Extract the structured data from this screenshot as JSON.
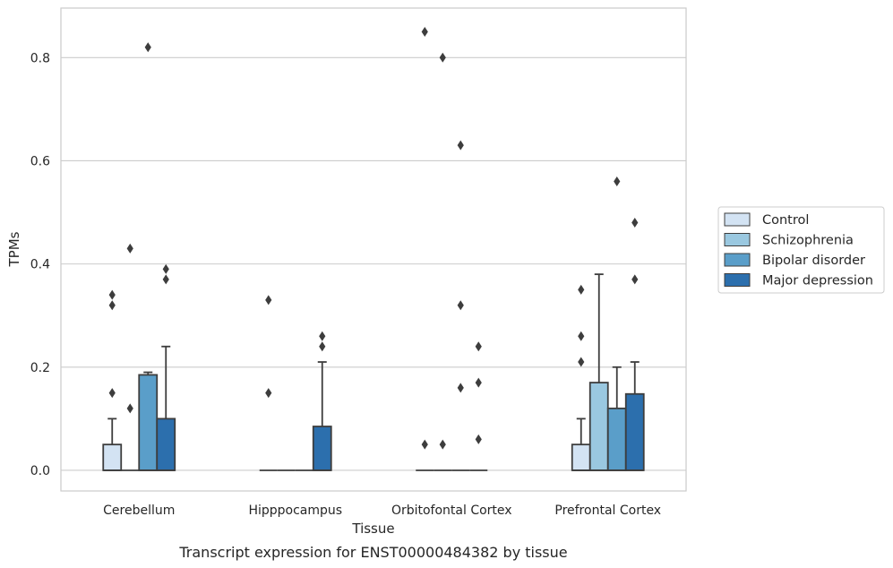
{
  "chart_data": {
    "type": "box",
    "caption": "Transcript expression for ENST00000484382 by tissue",
    "xlabel": "Tissue",
    "ylabel": "TPMs",
    "ylim": [
      -0.04,
      0.896
    ],
    "yticks": [
      "0.0",
      "0.2",
      "0.4",
      "0.6",
      "0.8"
    ],
    "ytick_values": [
      0.0,
      0.2,
      0.4,
      0.6,
      0.8
    ],
    "grid": "horizontal",
    "legend_position": "right",
    "categories": [
      "Cerebellum",
      "Hipppocampus",
      "Orbitofontal Cortex",
      "Prefrontal Cortex"
    ],
    "series": [
      {
        "name": "Control",
        "color": "#d3e3f3",
        "boxes": [
          {
            "q1": 0,
            "median": 0,
            "q3": 0.05,
            "whisker_low": 0,
            "whisker_high": 0.1,
            "outliers": [
              0.34,
              0.32,
              0.15
            ]
          },
          {
            "q1": 0,
            "median": 0,
            "q3": 0,
            "whisker_low": 0,
            "whisker_high": 0,
            "outliers": [
              0.33,
              0.15
            ]
          },
          {
            "q1": 0,
            "median": 0,
            "q3": 0,
            "whisker_low": 0,
            "whisker_high": 0,
            "outliers": [
              0.85,
              0.05
            ]
          },
          {
            "q1": 0,
            "median": 0,
            "q3": 0.05,
            "whisker_low": 0,
            "whisker_high": 0.1,
            "outliers": [
              0.35,
              0.26,
              0.21
            ]
          }
        ]
      },
      {
        "name": "Schizophrenia",
        "color": "#9ac8e0",
        "boxes": [
          {
            "q1": 0,
            "median": 0,
            "q3": 0,
            "whisker_low": 0,
            "whisker_high": 0,
            "outliers": [
              0.43,
              0.12
            ]
          },
          {
            "q1": 0,
            "median": 0,
            "q3": 0,
            "whisker_low": 0,
            "whisker_high": 0,
            "outliers": []
          },
          {
            "q1": 0,
            "median": 0,
            "q3": 0,
            "whisker_low": 0,
            "whisker_high": 0,
            "outliers": [
              0.8,
              0.05
            ]
          },
          {
            "q1": 0,
            "median": 0,
            "q3": 0.17,
            "whisker_low": 0,
            "whisker_high": 0.38,
            "outliers": []
          }
        ]
      },
      {
        "name": "Bipolar disorder",
        "color": "#5a9ec9",
        "boxes": [
          {
            "q1": 0,
            "median": 0,
            "q3": 0.185,
            "whisker_low": 0,
            "whisker_high": 0.19,
            "outliers": [
              0.82
            ]
          },
          {
            "q1": 0,
            "median": 0,
            "q3": 0,
            "whisker_low": 0,
            "whisker_high": 0,
            "outliers": []
          },
          {
            "q1": 0,
            "median": 0,
            "q3": 0,
            "whisker_low": 0,
            "whisker_high": 0,
            "outliers": [
              0.63,
              0.32,
              0.16
            ]
          },
          {
            "q1": 0,
            "median": 0,
            "q3": 0.12,
            "whisker_low": 0,
            "whisker_high": 0.2,
            "outliers": [
              0.56
            ]
          }
        ]
      },
      {
        "name": "Major depression",
        "color": "#2c6fad",
        "boxes": [
          {
            "q1": 0,
            "median": 0,
            "q3": 0.1,
            "whisker_low": 0,
            "whisker_high": 0.24,
            "outliers": [
              0.39,
              0.37
            ]
          },
          {
            "q1": 0,
            "median": 0,
            "q3": 0.085,
            "whisker_low": 0,
            "whisker_high": 0.21,
            "outliers": [
              0.26,
              0.24
            ]
          },
          {
            "q1": 0,
            "median": 0,
            "q3": 0,
            "whisker_low": 0,
            "whisker_high": 0,
            "outliers": [
              0.24,
              0.17,
              0.06
            ]
          },
          {
            "q1": 0,
            "median": 0,
            "q3": 0.148,
            "whisker_low": 0,
            "whisker_high": 0.21,
            "outliers": [
              0.48,
              0.37
            ]
          }
        ]
      }
    ]
  }
}
